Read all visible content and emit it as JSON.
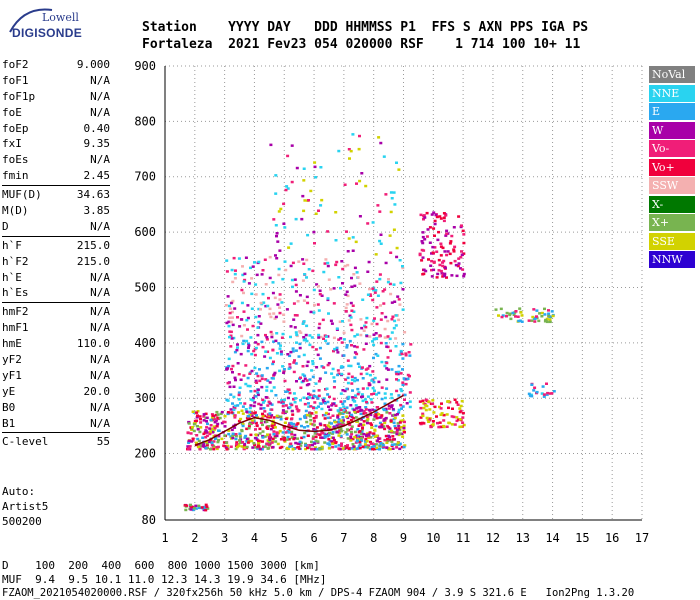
{
  "logo": {
    "line1": "Lowell",
    "line2": "DIGISONDE"
  },
  "header": {
    "row1": "Station    YYYY DAY   DDD HHMMSS P1  FFS S AXN PPS IGA PS",
    "row2": "Fortaleza  2021 Fev23 054 020000 RSF    1 714 100 10+ 11"
  },
  "parameters": {
    "group1": [
      {
        "k": "foF2",
        "v": "9.000"
      },
      {
        "k": "foF1",
        "v": "N/A"
      },
      {
        "k": "foF1p",
        "v": "N/A"
      },
      {
        "k": "foE",
        "v": "N/A"
      },
      {
        "k": "foEp",
        "v": "0.40"
      },
      {
        "k": "fxI",
        "v": "9.35"
      },
      {
        "k": "foEs",
        "v": "N/A"
      },
      {
        "k": "fmin",
        "v": "2.45"
      }
    ],
    "group2": [
      {
        "k": "MUF(D)",
        "v": "34.63"
      },
      {
        "k": "M(D)",
        "v": "3.85"
      },
      {
        "k": "D",
        "v": "N/A"
      }
    ],
    "group3": [
      {
        "k": "h`F",
        "v": "215.0"
      },
      {
        "k": "h`F2",
        "v": "215.0"
      },
      {
        "k": "h`E",
        "v": "N/A"
      },
      {
        "k": "h`Es",
        "v": "N/A"
      }
    ],
    "group4": [
      {
        "k": "hmF2",
        "v": "N/A"
      },
      {
        "k": "hmF1",
        "v": "N/A"
      },
      {
        "k": "hmE",
        "v": "110.0"
      },
      {
        "k": "yF2",
        "v": "N/A"
      },
      {
        "k": "yF1",
        "v": "N/A"
      },
      {
        "k": "yE",
        "v": "20.0"
      },
      {
        "k": "B0",
        "v": "N/A"
      },
      {
        "k": "B1",
        "v": "N/A"
      }
    ],
    "group5": [
      {
        "k": "C-level",
        "v": "55"
      }
    ]
  },
  "auto_block": {
    "line1": "Auto:",
    "line2": "Artist5",
    "line3": "500200"
  },
  "legend": [
    {
      "label": "NoVal",
      "color": "#808080"
    },
    {
      "label": "NNE",
      "color": "#29d3f0"
    },
    {
      "label": "E",
      "color": "#2aa8f0"
    },
    {
      "label": "W",
      "color": "#a800a8"
    },
    {
      "label": "Vo-",
      "color": "#f01e78"
    },
    {
      "label": "Vo+",
      "color": "#f0003c"
    },
    {
      "label": "SSW",
      "color": "#f4b0b0"
    },
    {
      "label": "X-",
      "color": "#007800"
    },
    {
      "label": "X+",
      "color": "#78b450"
    },
    {
      "label": "SSE",
      "color": "#d2d200"
    },
    {
      "label": "NNW",
      "color": "#2d00d2"
    }
  ],
  "footer": {
    "d_row": "D    100  200  400  600  800 1000 1500 3000 [km]",
    "muf_row": "MUF  9.4  9.5 10.1 11.0 12.3 14.3 19.9 34.6 [MHz]",
    "file_row": "FZAOM_2021054020000.RSF / 320fx256h 50 kHz 5.0 km / DPS-4 FZAOM 904 / 3.9 S 321.6 E   Ion2Png 1.3.20"
  },
  "chart_data": {
    "type": "scatter",
    "x_ticks": [
      "1",
      "2",
      "3",
      "4",
      "5",
      "6",
      "7",
      "8",
      "9",
      "10",
      "11",
      "12",
      "13",
      "14",
      "15",
      "16",
      "17"
    ],
    "y_ticks": [
      "80",
      "200",
      "300",
      "400",
      "500",
      "600",
      "700",
      "800",
      "900"
    ],
    "xlim": [
      1,
      17
    ],
    "ylim": [
      80,
      900
    ],
    "grid": true,
    "legend_position": "right",
    "trace": {
      "name": "",
      "x": [
        2.0,
        2.5,
        3.0,
        3.5,
        4.0,
        4.5,
        5.0,
        5.5,
        6.0,
        6.5,
        7.0,
        7.5,
        8.0,
        8.5,
        9.0
      ],
      "y": [
        215,
        225,
        240,
        255,
        265,
        260,
        250,
        242,
        240,
        242,
        250,
        262,
        275,
        290,
        305
      ]
    },
    "clusters": [
      {
        "x": [
          1.7,
          9.0
        ],
        "y": [
          210,
          280
        ],
        "n": 900,
        "colors": [
          "#f0003c",
          "#f01e78",
          "#a800a8",
          "#2aa8f0",
          "#d2d200",
          "#78b450"
        ]
      },
      {
        "x": [
          3.0,
          9.2
        ],
        "y": [
          280,
          410
        ],
        "n": 500,
        "colors": [
          "#29d3f0",
          "#a800a8",
          "#2aa8f0",
          "#f01e78"
        ]
      },
      {
        "x": [
          3.0,
          9.0
        ],
        "y": [
          410,
          560
        ],
        "n": 320,
        "colors": [
          "#f01e78",
          "#a800a8",
          "#29d3f0",
          "#f4b0b0"
        ]
      },
      {
        "x": [
          4.5,
          8.8
        ],
        "y": [
          560,
          780
        ],
        "n": 90,
        "colors": [
          "#29d3f0",
          "#f01e78",
          "#a800a8",
          "#d2d200"
        ]
      },
      {
        "x": [
          9.5,
          11.0
        ],
        "y": [
          520,
          640
        ],
        "n": 120,
        "colors": [
          "#a800a8",
          "#f01e78",
          "#f0003c"
        ]
      },
      {
        "x": [
          9.5,
          11.0
        ],
        "y": [
          250,
          300
        ],
        "n": 90,
        "colors": [
          "#f0003c",
          "#f01e78",
          "#d2d200"
        ]
      },
      {
        "x": [
          12.0,
          14.0
        ],
        "y": [
          440,
          465
        ],
        "n": 60,
        "colors": [
          "#78b450",
          "#d2d200",
          "#f01e78",
          "#2aa8f0"
        ]
      },
      {
        "x": [
          13.1,
          14.1
        ],
        "y": [
          305,
          330
        ],
        "n": 20,
        "colors": [
          "#2aa8f0",
          "#29d3f0",
          "#f01e78"
        ]
      },
      {
        "x": [
          1.6,
          2.4
        ],
        "y": [
          100,
          110
        ],
        "n": 30,
        "colors": [
          "#a800a8",
          "#2aa8f0",
          "#f0003c",
          "#78b450"
        ]
      }
    ]
  }
}
